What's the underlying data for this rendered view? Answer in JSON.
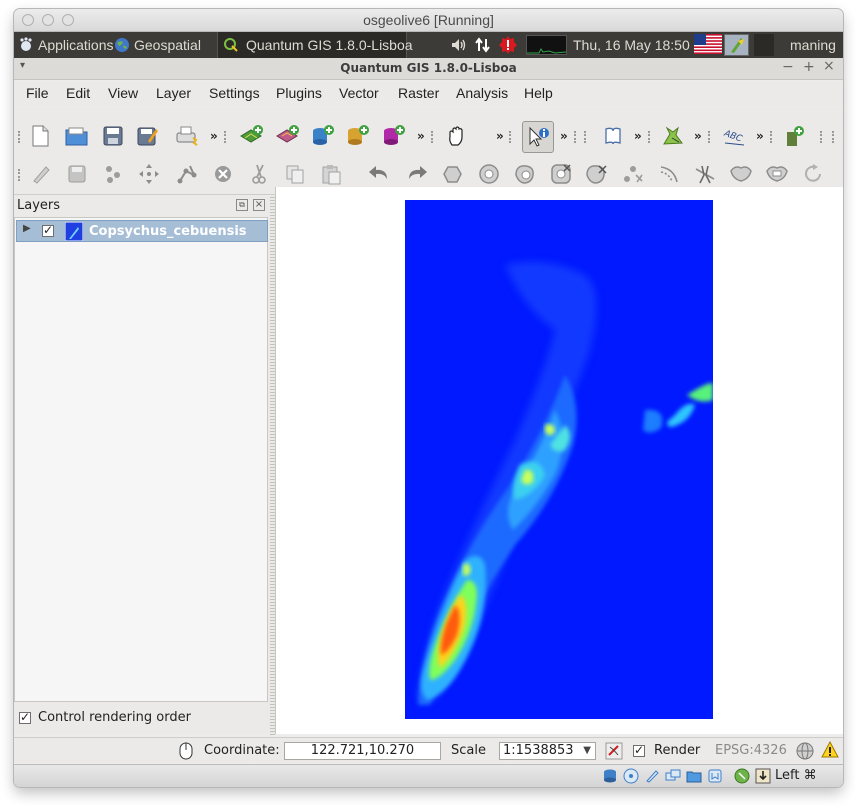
{
  "vbox": {
    "title": "osgeolive6 [Running]",
    "host_key": "Left ⌘"
  },
  "panel": {
    "applications": "Applications",
    "geospatial": "Geospatial",
    "active_task": "Quantum GIS 1.8.0-Lisboa",
    "datetime": "Thu, 16 May  18:50",
    "user": "maning"
  },
  "window": {
    "title": "Quantum GIS 1.8.0-Lisboa"
  },
  "menu": [
    "File",
    "Edit",
    "View",
    "Layer",
    "Settings",
    "Plugins",
    "Vector",
    "Raster",
    "Analysis",
    "Help"
  ],
  "layers": {
    "title": "Layers",
    "items": [
      {
        "name": "Copsychus_cebuensis",
        "checked": true
      }
    ],
    "control_rendering_order": "Control rendering order"
  },
  "status": {
    "coordinate_label": "Coordinate:",
    "coordinate_value": "122.721,10.270",
    "scale_label": "Scale",
    "scale_value": "1:1538853",
    "render_label": "Render",
    "crs": "EPSG:4326"
  },
  "colors": {
    "raster_bg": "#0019ff",
    "selection": "#a6bdd6",
    "panel": "#3c3b37"
  },
  "icons": {
    "toolbar1": [
      "new-project-icon",
      "open-project-icon",
      "save-project-icon",
      "save-as-icon",
      "print-composer-icon",
      "add-vector-layer-icon",
      "add-raster-layer-icon",
      "add-postgis-layer-icon",
      "add-spatialite-layer-icon",
      "add-mssql-layer-icon",
      "pan-map-icon",
      "identify-icon",
      "help-icon",
      "label-icon",
      "add-wms-layer-icon"
    ],
    "toolbar2": [
      "toggle-editing-icon",
      "save-edits-icon",
      "add-feature-icon",
      "move-feature-icon",
      "node-tool-icon",
      "delete-selected-icon",
      "cut-features-icon",
      "copy-features-icon",
      "paste-features-icon",
      "undo-icon",
      "redo-icon",
      "simplify-feature-icon",
      "add-ring-icon",
      "add-part-icon",
      "delete-ring-icon",
      "delete-part-icon",
      "reshape-features-icon",
      "offset-curve-icon",
      "split-features-icon",
      "split-parts-icon",
      "merge-features-icon",
      "merge-attributes-icon",
      "rotate-point-symbols-icon"
    ]
  }
}
